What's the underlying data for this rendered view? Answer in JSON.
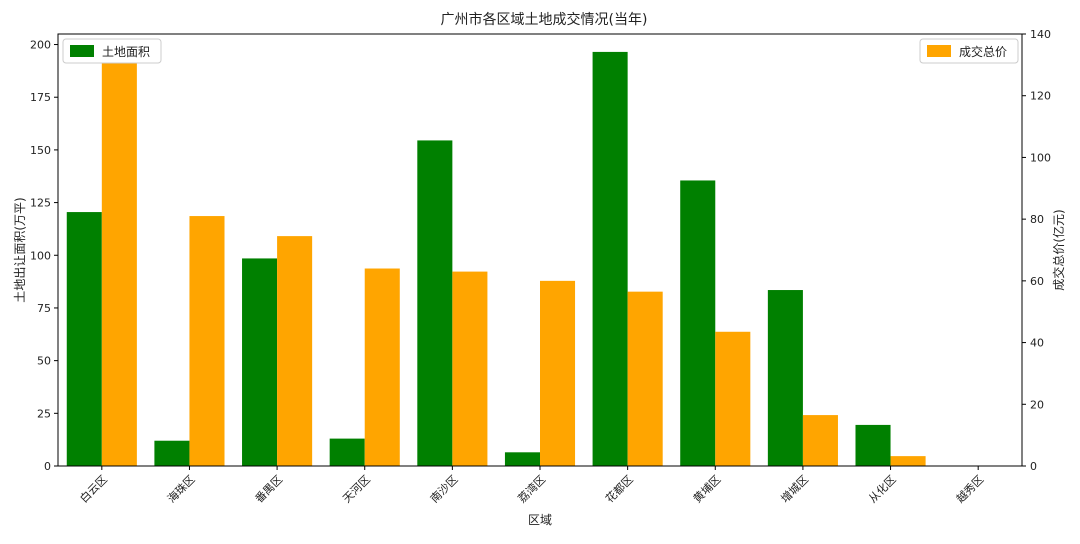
{
  "chart_data": {
    "type": "bar",
    "title": "广州市各区域土地成交情况(当年)",
    "xlabel": "区域",
    "categories": [
      "白云区",
      "海珠区",
      "番禺区",
      "天河区",
      "南沙区",
      "荔湾区",
      "花都区",
      "黄埔区",
      "增城区",
      "从化区",
      "越秀区"
    ],
    "left_axis": {
      "label": "土地出让面积(万平)",
      "ylim": [
        0,
        205
      ],
      "ticks": [
        0,
        25,
        50,
        75,
        100,
        125,
        150,
        175,
        200
      ]
    },
    "right_axis": {
      "label": "成交总价(亿元)",
      "ylim": [
        0,
        140
      ],
      "ticks": [
        0,
        20,
        40,
        60,
        80,
        100,
        120,
        140
      ]
    },
    "series": [
      {
        "name": "土地面积",
        "axis": "left",
        "color": "#008000",
        "values": [
          120.5,
          12,
          98.5,
          13,
          154.5,
          6.5,
          196.5,
          135.5,
          83.5,
          19.5,
          0
        ]
      },
      {
        "name": "成交总价",
        "axis": "right",
        "color": "#FFA500",
        "values": [
          133.5,
          81,
          74.5,
          64,
          63,
          60,
          56.5,
          43.5,
          16.5,
          3.2,
          0
        ]
      }
    ],
    "legend": {
      "left_series": "top-left",
      "right_series": "top-right"
    },
    "grid": false
  }
}
